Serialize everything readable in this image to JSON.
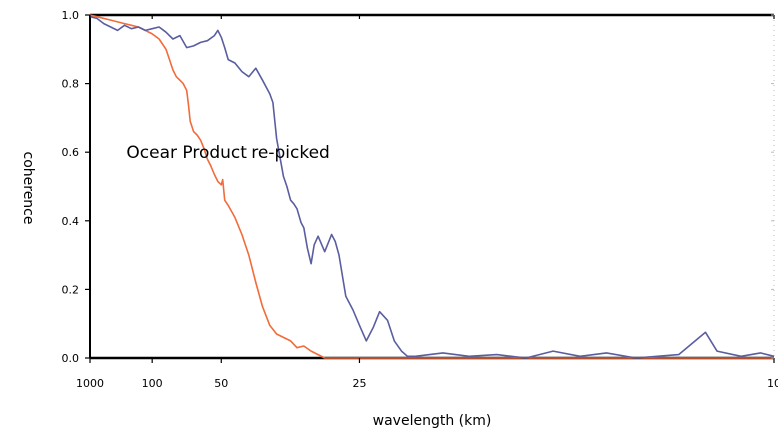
{
  "chart_data": {
    "type": "line",
    "xlabel": "wavelength (km)",
    "ylabel": "coherence",
    "x_scale": "reciprocal",
    "xlim": [
      1000,
      10
    ],
    "ylim": [
      0,
      1
    ],
    "x_ticks": [
      {
        "value": 1000,
        "label": "1000"
      },
      {
        "value": 100,
        "label": "100"
      },
      {
        "value": 50,
        "label": "50"
      },
      {
        "value": 25,
        "label": "25"
      },
      {
        "value": 10,
        "label": "10"
      }
    ],
    "y_ticks": [
      {
        "value": 0,
        "label": "0.0"
      },
      {
        "value": 0.2,
        "label": "0.2"
      },
      {
        "value": 0.4,
        "label": "0.4"
      },
      {
        "value": 0.6,
        "label": "0.6"
      },
      {
        "value": 0.8,
        "label": "0.8"
      },
      {
        "value": 1.0,
        "label": "1.0"
      }
    ],
    "grid": false,
    "series": [
      {
        "name": "Ocean Product",
        "color": "#f26b3a",
        "points": [
          [
            1000,
            1.0
          ],
          [
            500,
            0.995
          ],
          [
            250,
            0.985
          ],
          [
            200,
            0.98
          ],
          [
            166.7,
            0.975
          ],
          [
            142.9,
            0.97
          ],
          [
            125,
            0.965
          ],
          [
            111.1,
            0.955
          ],
          [
            100,
            0.945
          ],
          [
            90.9,
            0.93
          ],
          [
            83.3,
            0.9
          ],
          [
            80,
            0.87
          ],
          [
            76.9,
            0.84
          ],
          [
            74.1,
            0.82
          ],
          [
            71.4,
            0.81
          ],
          [
            69,
            0.8
          ],
          [
            66.7,
            0.78
          ],
          [
            65.6,
            0.74
          ],
          [
            64.5,
            0.69
          ],
          [
            62.5,
            0.66
          ],
          [
            60.6,
            0.65
          ],
          [
            58.8,
            0.635
          ],
          [
            57.1,
            0.61
          ],
          [
            55.6,
            0.58
          ],
          [
            54.1,
            0.56
          ],
          [
            52.6,
            0.535
          ],
          [
            51.3,
            0.515
          ],
          [
            50,
            0.505
          ],
          [
            49.5,
            0.52
          ],
          [
            48.8,
            0.46
          ],
          [
            47.6,
            0.445
          ],
          [
            45.5,
            0.41
          ],
          [
            43.5,
            0.36
          ],
          [
            41.7,
            0.3
          ],
          [
            40,
            0.22
          ],
          [
            38.5,
            0.15
          ],
          [
            37,
            0.095
          ],
          [
            35.7,
            0.07
          ],
          [
            34.5,
            0.06
          ],
          [
            33.3,
            0.05
          ],
          [
            32.3,
            0.03
          ],
          [
            31.3,
            0.035
          ],
          [
            30.3,
            0.02
          ],
          [
            29.4,
            0.01
          ],
          [
            28.6,
            0.0
          ],
          [
            25,
            0.0
          ],
          [
            20,
            0.0
          ],
          [
            16.7,
            0.0
          ],
          [
            14.3,
            0.0
          ],
          [
            12.5,
            0.0
          ],
          [
            11.1,
            0.0
          ],
          [
            10,
            0.0
          ]
        ]
      },
      {
        "name": "re-picked",
        "color": "#5a5ea0",
        "points": [
          [
            1000,
            0.995
          ],
          [
            500,
            0.99
          ],
          [
            333,
            0.975
          ],
          [
            250,
            0.965
          ],
          [
            200,
            0.955
          ],
          [
            166.7,
            0.97
          ],
          [
            142.9,
            0.96
          ],
          [
            125,
            0.965
          ],
          [
            111.1,
            0.955
          ],
          [
            100,
            0.96
          ],
          [
            90.9,
            0.965
          ],
          [
            83.3,
            0.95
          ],
          [
            76.9,
            0.93
          ],
          [
            71.4,
            0.94
          ],
          [
            66.7,
            0.905
          ],
          [
            62.5,
            0.91
          ],
          [
            58.8,
            0.92
          ],
          [
            55.6,
            0.925
          ],
          [
            52.6,
            0.94
          ],
          [
            51.3,
            0.955
          ],
          [
            50,
            0.935
          ],
          [
            48.8,
            0.905
          ],
          [
            47.6,
            0.87
          ],
          [
            45.5,
            0.86
          ],
          [
            43.5,
            0.835
          ],
          [
            41.7,
            0.82
          ],
          [
            40,
            0.845
          ],
          [
            38.5,
            0.81
          ],
          [
            37,
            0.77
          ],
          [
            36.4,
            0.745
          ],
          [
            35.7,
            0.64
          ],
          [
            34.5,
            0.53
          ],
          [
            33.9,
            0.5
          ],
          [
            33.3,
            0.46
          ],
          [
            32.8,
            0.45
          ],
          [
            32.3,
            0.435
          ],
          [
            31.7,
            0.395
          ],
          [
            31.3,
            0.38
          ],
          [
            30.8,
            0.32
          ],
          [
            30.3,
            0.275
          ],
          [
            29.9,
            0.33
          ],
          [
            29.4,
            0.355
          ],
          [
            28.6,
            0.31
          ],
          [
            27.8,
            0.36
          ],
          [
            27.4,
            0.34
          ],
          [
            27,
            0.3
          ],
          [
            26.3,
            0.18
          ],
          [
            25.6,
            0.14
          ],
          [
            25,
            0.095
          ],
          [
            24.4,
            0.05
          ],
          [
            23.8,
            0.09
          ],
          [
            23.3,
            0.135
          ],
          [
            22.7,
            0.11
          ],
          [
            22.2,
            0.05
          ],
          [
            21.7,
            0.02
          ],
          [
            21.3,
            0.005
          ],
          [
            20.8,
            0.005
          ],
          [
            19.2,
            0.015
          ],
          [
            17.9,
            0.005
          ],
          [
            16.7,
            0.01
          ],
          [
            15.6,
            0.0
          ],
          [
            14.7,
            0.02
          ],
          [
            13.9,
            0.005
          ],
          [
            13.2,
            0.015
          ],
          [
            12.5,
            0.0
          ],
          [
            11.6,
            0.01
          ],
          [
            11.1,
            0.075
          ],
          [
            10.9,
            0.02
          ],
          [
            10.5,
            0.005
          ],
          [
            10.2,
            0.015
          ],
          [
            10,
            0.005
          ]
        ]
      }
    ],
    "annotations": [
      {
        "text": "Ocear Product",
        "x": 66.7,
        "y": 0.6
      },
      {
        "text": "re-picked",
        "x": 33.3,
        "y": 0.6
      }
    ]
  }
}
